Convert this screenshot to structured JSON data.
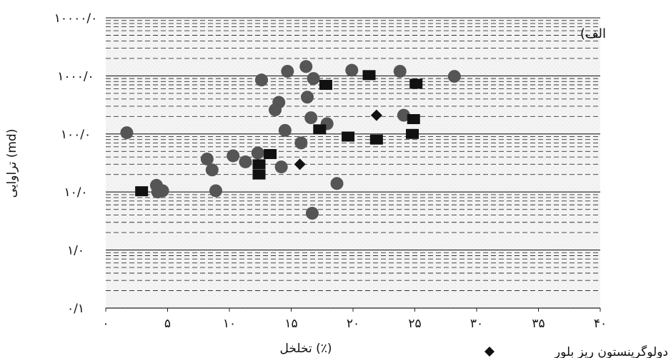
{
  "chart_data": {
    "type": "scatter",
    "panel_label": "الف)",
    "xlabel": "تخلخل (٪)",
    "ylabel": "تراوایی (md)",
    "xlim": [
      0,
      40
    ],
    "ylim": [
      0.1,
      10000
    ],
    "y_scale": "log",
    "x_tick_labels": [
      "۰",
      "۵",
      "۱۰",
      "۱۵",
      "۲۰",
      "۲۵",
      "۳۰",
      "۳۵",
      "۴۰"
    ],
    "y_tick_labels": [
      "۰/۱",
      "۱/۰",
      "۱۰/۰",
      "۱۰۰/۰",
      "۱۰۰۰/۰",
      "۱۰۰۰۰/۰"
    ],
    "grid": true,
    "legend": [
      "دولوگرینستون ریز بلور"
    ],
    "series": [
      {
        "marker": "circle",
        "color": "#555555",
        "points": [
          [
            1.7,
            105
          ],
          [
            4.1,
            13
          ],
          [
            4.2,
            10
          ],
          [
            4.6,
            10.5
          ],
          [
            8.2,
            37
          ],
          [
            8.6,
            24
          ],
          [
            8.9,
            10.5
          ],
          [
            10.3,
            42
          ],
          [
            11.3,
            33
          ],
          [
            12.3,
            47
          ],
          [
            12.6,
            850
          ],
          [
            13.7,
            260
          ],
          [
            14,
            350
          ],
          [
            14.2,
            27
          ],
          [
            14.5,
            115
          ],
          [
            14.7,
            1200
          ],
          [
            15.8,
            70
          ],
          [
            16.2,
            1450
          ],
          [
            16.3,
            430
          ],
          [
            16.6,
            190
          ],
          [
            16.8,
            900
          ],
          [
            16.7,
            4.3
          ],
          [
            17.9,
            150
          ],
          [
            18.7,
            14
          ],
          [
            19.9,
            1250
          ],
          [
            23.8,
            1200
          ],
          [
            24.1,
            210
          ],
          [
            28.2,
            980
          ]
        ]
      },
      {
        "marker": "square",
        "color": "#111111",
        "points": [
          [
            2.9,
            10.3
          ],
          [
            12.4,
            30
          ],
          [
            12.4,
            20
          ],
          [
            13.3,
            45
          ],
          [
            17.3,
            120
          ],
          [
            17.8,
            700
          ],
          [
            19.6,
            90
          ],
          [
            21.3,
            1030
          ],
          [
            21.9,
            80
          ],
          [
            24.8,
            100
          ],
          [
            24.9,
            180
          ],
          [
            25.1,
            730
          ]
        ]
      },
      {
        "name": "دولوگرینستون ریز بلور",
        "marker": "diamond",
        "color": "#111111",
        "points": [
          [
            15.7,
            30
          ],
          [
            21.9,
            210
          ]
        ]
      }
    ]
  }
}
